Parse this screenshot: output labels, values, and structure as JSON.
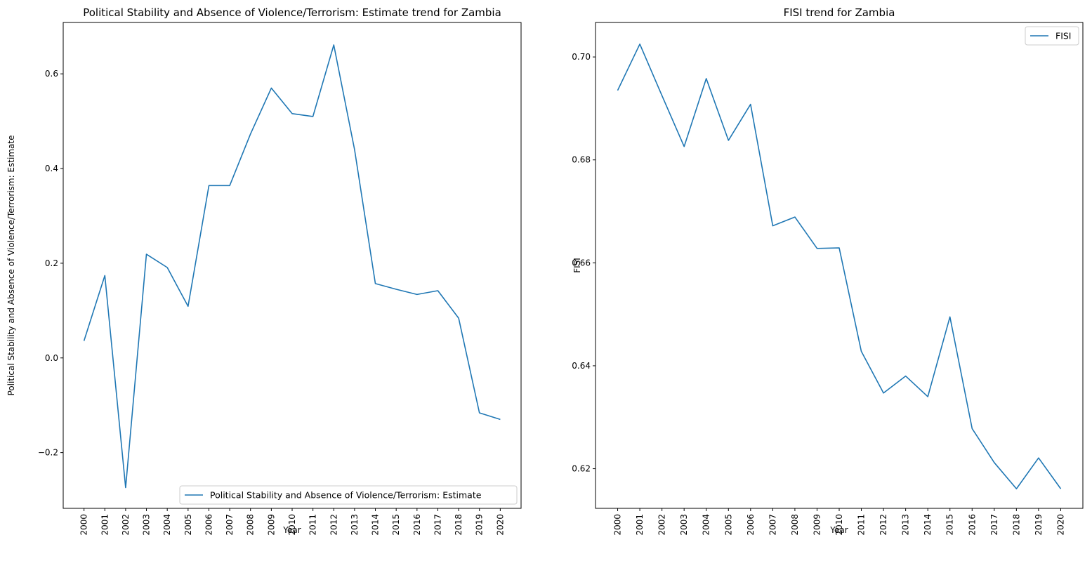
{
  "chart_data": [
    {
      "type": "line",
      "title": "Political Stability and Absence of Violence/Terrorism: Estimate trend for Zambia",
      "xlabel": "Year",
      "ylabel": "Political Stability and Absence of Violence/Terrorism: Estimate",
      "ylim": [
        -0.3177,
        0.7085
      ],
      "yticks": [
        -0.2,
        0.0,
        0.2,
        0.4,
        0.6
      ],
      "ytick_labels": [
        "−0.2",
        "0.0",
        "0.2",
        "0.4",
        "0.6"
      ],
      "legend_position": "lower-right",
      "grid": false,
      "color": "#1f77b4",
      "categories": [
        "2000",
        "2001",
        "2002",
        "2003",
        "2004",
        "2005",
        "2006",
        "2007",
        "2008",
        "2009",
        "2010",
        "2011",
        "2012",
        "2013",
        "2014",
        "2015",
        "2016",
        "2017",
        "2018",
        "2019",
        "2020"
      ],
      "series": [
        {
          "name": "Political Stability and Absence of Violence/Terrorism: Estimate",
          "values": [
            0.036,
            0.174,
            -0.274,
            0.219,
            0.191,
            0.109,
            0.364,
            0.364,
            0.473,
            0.57,
            0.516,
            0.51,
            0.661,
            0.44,
            0.157,
            0.145,
            0.134,
            0.142,
            0.084,
            -0.116,
            -0.13
          ]
        }
      ]
    },
    {
      "type": "line",
      "title": "FISI trend for Zambia",
      "xlabel": "Year",
      "ylabel": "FISI",
      "ylim": [
        0.6123,
        0.7067
      ],
      "yticks": [
        0.62,
        0.64,
        0.66,
        0.68,
        0.7
      ],
      "ytick_labels": [
        "0.62",
        "0.64",
        "0.66",
        "0.68",
        "0.70"
      ],
      "legend_position": "upper-right",
      "grid": false,
      "color": "#1f77b4",
      "categories": [
        "2000",
        "2001",
        "2002",
        "2003",
        "2004",
        "2005",
        "2006",
        "2007",
        "2008",
        "2009",
        "2010",
        "2011",
        "2012",
        "2013",
        "2014",
        "2015",
        "2016",
        "2017",
        "2018",
        "2019",
        "2020"
      ],
      "series": [
        {
          "name": "FISI",
          "values": [
            0.6935,
            0.7025,
            0.6925,
            0.6826,
            0.6958,
            0.6838,
            0.6908,
            0.6672,
            0.6689,
            0.6628,
            0.6629,
            0.6428,
            0.6347,
            0.638,
            0.634,
            0.6495,
            0.6278,
            0.6212,
            0.6161,
            0.6221,
            0.6161
          ]
        }
      ]
    }
  ]
}
